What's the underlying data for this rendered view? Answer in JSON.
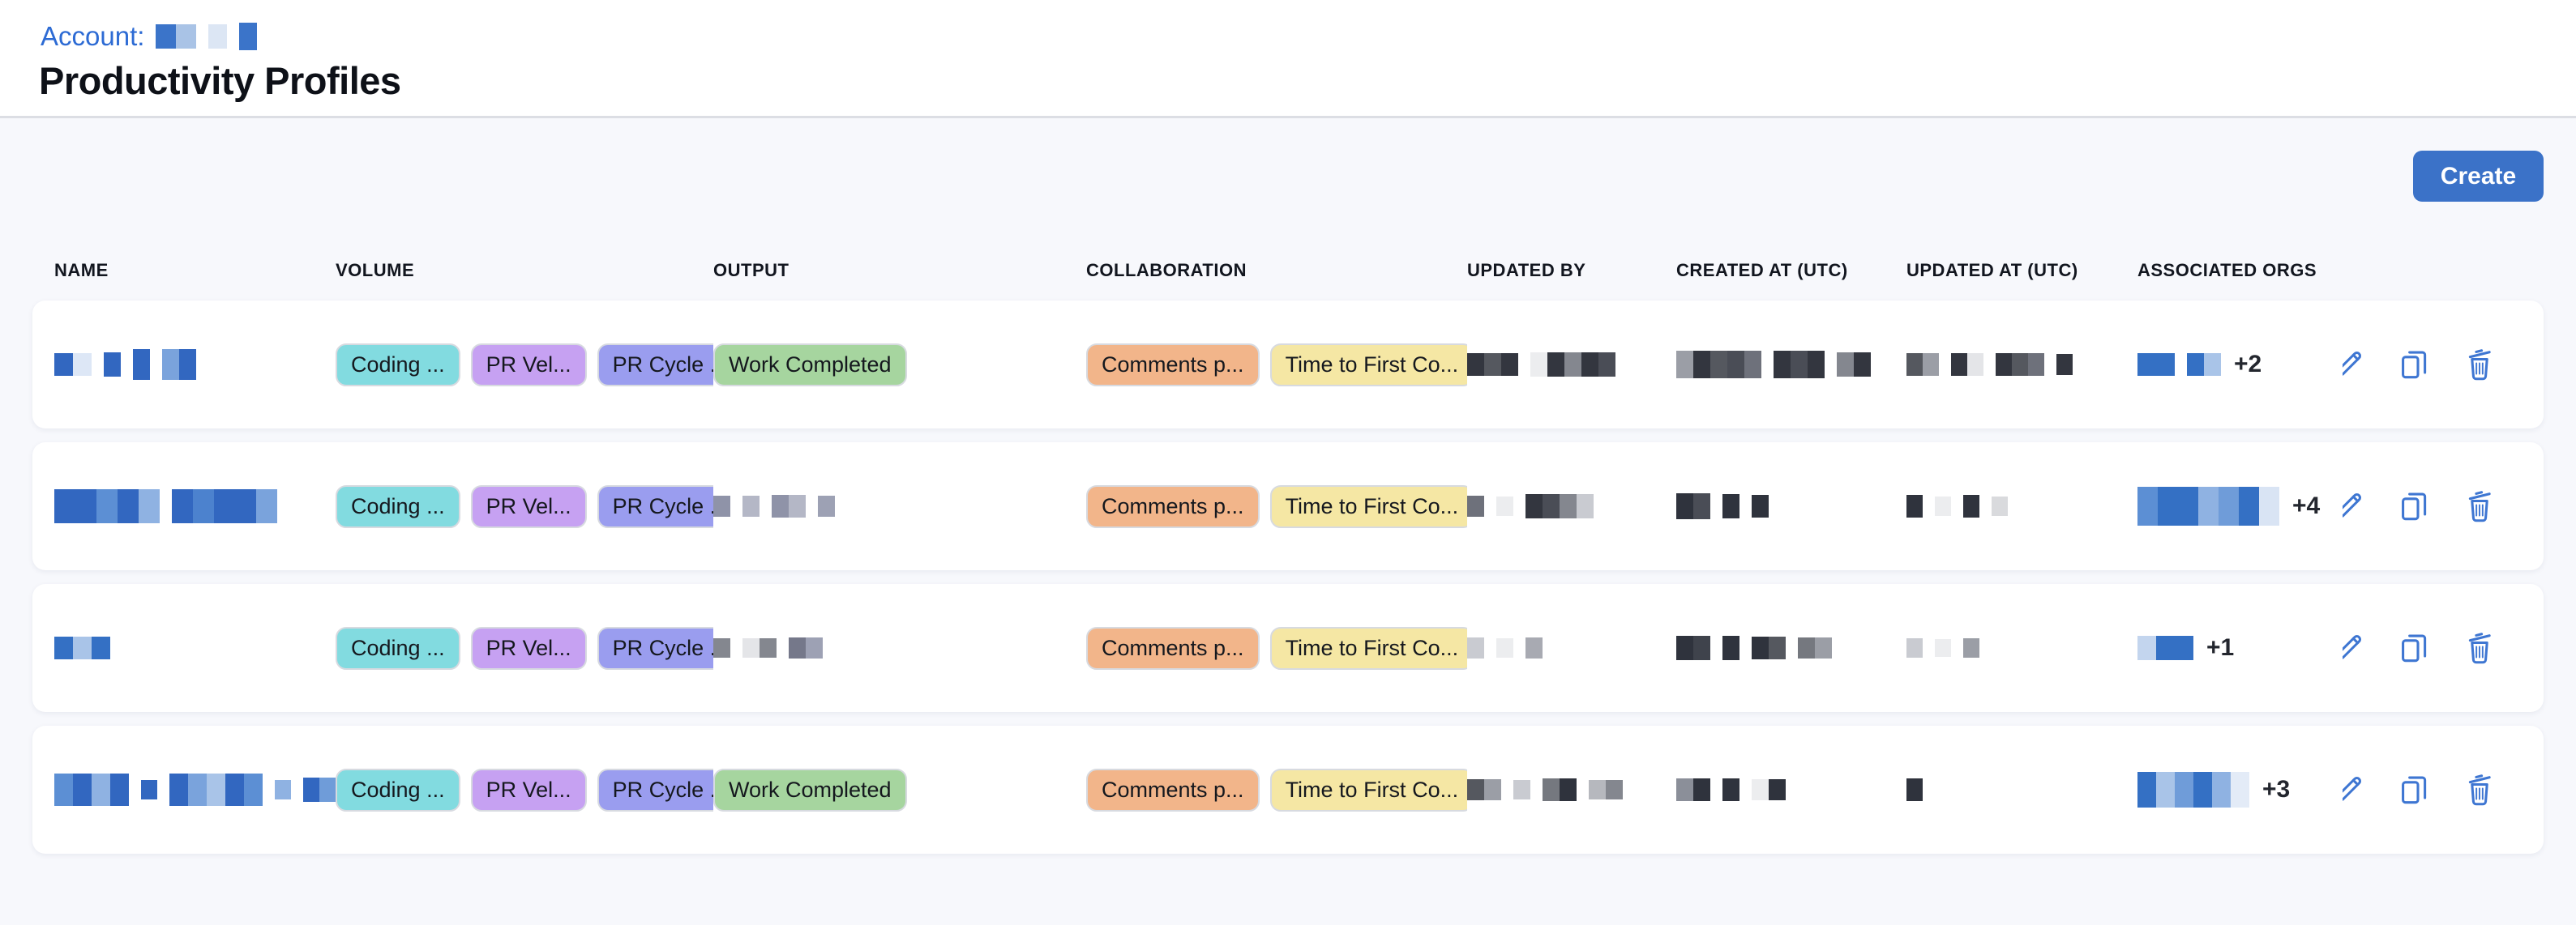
{
  "header": {
    "account_label": "Account:",
    "title": "Productivity Profiles",
    "account_redacted": [
      {
        "h": 30,
        "w": 25,
        "c": [
          "#3B74C9",
          "#A9C3E6"
        ]
      },
      {
        "h": 30,
        "w": 23,
        "c": [
          "#DCE6F4"
        ]
      },
      {
        "h": 34,
        "w": 22,
        "c": [
          "#3B74C9"
        ]
      }
    ]
  },
  "toolbar": {
    "create_label": "Create"
  },
  "colors": {
    "accent_blue": "#3B72C8",
    "link_blue": "#2D6BD4",
    "icon_blue": "#3E76D2",
    "page_background": "#F7F8FC",
    "card_background": "#FFFFFF",
    "badge_teal": "#82DBE0",
    "badge_purple": "#C6A1F2",
    "badge_periwinkle": "#9A9DEF",
    "badge_green": "#A6D59F",
    "badge_orange": "#F2B58A",
    "badge_yellow": "#F5E7A4"
  },
  "badge_defs": {
    "coding": {
      "label": "Coding ...",
      "bg": "#82DBE0"
    },
    "pr_velocity": {
      "label": "PR Vel...",
      "bg": "#C6A1F2"
    },
    "pr_cycle": {
      "label": "PR Cycle ...",
      "bg": "#9A9DEF"
    },
    "work_completed": {
      "label": "Work Completed",
      "bg": "#A6D59F"
    },
    "comments": {
      "label": "Comments p...",
      "bg": "#F2B58A"
    },
    "time_to_first": {
      "label": "Time to First Co...",
      "bg": "#F5E7A4"
    }
  },
  "table": {
    "columns": [
      "NAME",
      "VOLUME",
      "OUTPUT",
      "COLLABORATION",
      "UPDATED BY",
      "CREATED AT (UTC)",
      "UPDATED AT (UTC)",
      "ASSOCIATED ORGS"
    ],
    "rows": [
      {
        "name": [
          {
            "h": 28,
            "w": 23,
            "c": [
              "#3267C0",
              "#DDE7F6"
            ]
          },
          {
            "h": 30,
            "w": 21,
            "c": [
              "#3267C0"
            ]
          },
          {
            "h": 38,
            "w": 21,
            "c": [
              "#3267C0"
            ]
          },
          {
            "h": 38,
            "w": 21,
            "c": [
              "#7AA3DC",
              "#3267C0"
            ]
          }
        ],
        "volume": [
          "coding",
          "pr_velocity",
          "pr_cycle"
        ],
        "output_badges": [
          "work_completed"
        ],
        "output_redacted": [],
        "collaboration": [
          "comments",
          "time_to_first"
        ],
        "updated_by": [
          {
            "h": 28,
            "w": 21,
            "c": [
              "#33363F",
              "#55585F",
              "#33363F"
            ]
          },
          {
            "h": 30,
            "w": 21,
            "c": [
              "#ECEDEF",
              "#33363F",
              "#84878F",
              "#33363F",
              "#4A4D56"
            ]
          }
        ],
        "created_at": [
          {
            "h": 34,
            "w": 21,
            "c": [
              "#9B9EA6",
              "#33363F",
              "#55585F",
              "#4A4D56",
              "#6E717B"
            ]
          },
          {
            "h": 34,
            "w": 21,
            "c": [
              "#33363F",
              "#4A4D56",
              "#33363F"
            ]
          },
          {
            "h": 30,
            "w": 21,
            "c": [
              "#84878F",
              "#33363F"
            ]
          }
        ],
        "updated_at": [
          {
            "h": 28,
            "w": 20,
            "c": [
              "#55585F",
              "#9B9EA6"
            ]
          },
          {
            "h": 28,
            "w": 20,
            "c": [
              "#33363F",
              "#E4E5E8"
            ]
          },
          {
            "h": 28,
            "w": 20,
            "c": [
              "#33363F",
              "#55585F",
              "#6E717B"
            ]
          },
          {
            "h": 26,
            "w": 20,
            "c": [
              "#33363F"
            ]
          }
        ],
        "orgs": [
          {
            "h": 28,
            "w": 23,
            "c": [
              "#3470C4",
              "#3470C4"
            ]
          },
          {
            "h": 28,
            "w": 21,
            "c": [
              "#3470C4",
              "#A9C4E8"
            ]
          }
        ],
        "orgs_more": "+2"
      },
      {
        "name": [
          {
            "h": 42,
            "w": 26,
            "c": [
              "#3267C0",
              "#3267C0",
              "#5C8FD4",
              "#3267C0",
              "#8FB2E2"
            ]
          },
          {
            "h": 42,
            "w": 26,
            "c": [
              "#3267C0",
              "#4C82CE",
              "#3267C0",
              "#3267C0",
              "#7AA3DC"
            ]
          }
        ],
        "volume": [
          "coding",
          "pr_velocity",
          "pr_cycle"
        ],
        "output_badges": [],
        "output_redacted": [
          {
            "h": 26,
            "w": 21,
            "c": [
              "#8F93A8"
            ]
          },
          {
            "h": 26,
            "w": 21,
            "c": [
              "#B4B7C6"
            ]
          },
          {
            "h": 28,
            "w": 21,
            "c": [
              "#8F93A8",
              "#B4B7C6"
            ]
          },
          {
            "h": 26,
            "w": 21,
            "c": [
              "#9DA1B4"
            ]
          }
        ],
        "collaboration": [
          "comments",
          "time_to_first"
        ],
        "updated_by": [
          {
            "h": 26,
            "w": 21,
            "c": [
              "#6E717B"
            ]
          },
          {
            "h": 24,
            "w": 21,
            "c": [
              "#ECEDEF"
            ]
          },
          {
            "h": 30,
            "w": 21,
            "c": [
              "#33363F",
              "#4A4D56",
              "#84878F",
              "#C9CBD1"
            ]
          }
        ],
        "created_at": [
          {
            "h": 32,
            "w": 21,
            "c": [
              "#2F333D",
              "#4A4D56"
            ]
          },
          {
            "h": 30,
            "w": 21,
            "c": [
              "#2F333D"
            ]
          },
          {
            "h": 28,
            "w": 21,
            "c": [
              "#2F333D"
            ]
          }
        ],
        "updated_at": [
          {
            "h": 28,
            "w": 20,
            "c": [
              "#2F333D"
            ]
          },
          {
            "h": 24,
            "w": 20,
            "c": [
              "#ECEDEF"
            ]
          },
          {
            "h": 28,
            "w": 20,
            "c": [
              "#2F333D"
            ]
          },
          {
            "h": 24,
            "w": 20,
            "c": [
              "#D9DADD"
            ]
          }
        ],
        "orgs": [
          {
            "h": 48,
            "w": 25,
            "c": [
              "#5C8FD4",
              "#3470C4",
              "#3470C4",
              "#8FB2E2",
              "#6F9CD9",
              "#3470C4",
              "#D9E4F4"
            ]
          }
        ],
        "orgs_more": "+4"
      },
      {
        "name": [
          {
            "h": 28,
            "w": 23,
            "c": [
              "#3470C4",
              "#A9C4E8",
              "#3470C4"
            ]
          }
        ],
        "volume": [
          "coding",
          "pr_velocity",
          "pr_cycle"
        ],
        "output_badges": [],
        "output_redacted": [
          {
            "h": 24,
            "w": 21,
            "c": [
              "#84878F"
            ]
          },
          {
            "h": 24,
            "w": 21,
            "c": [
              "#E4E5E8",
              "#84878F"
            ]
          },
          {
            "h": 26,
            "w": 21,
            "c": [
              "#75788A",
              "#9DA1B4"
            ]
          }
        ],
        "collaboration": [
          "comments",
          "time_to_first"
        ],
        "updated_by": [
          {
            "h": 26,
            "w": 21,
            "c": [
              "#C9CBD1"
            ]
          },
          {
            "h": 24,
            "w": 21,
            "c": [
              "#ECEDEF"
            ]
          },
          {
            "h": 26,
            "w": 21,
            "c": [
              "#A8AAB2"
            ]
          }
        ],
        "created_at": [
          {
            "h": 30,
            "w": 21,
            "c": [
              "#2F333D",
              "#3F434C"
            ]
          },
          {
            "h": 30,
            "w": 21,
            "c": [
              "#2F333D"
            ]
          },
          {
            "h": 28,
            "w": 21,
            "c": [
              "#2F333D",
              "#55585F"
            ]
          },
          {
            "h": 26,
            "w": 21,
            "c": [
              "#75787F",
              "#9B9EA6"
            ]
          }
        ],
        "updated_at": [
          {
            "h": 24,
            "w": 20,
            "c": [
              "#C9CBD1"
            ]
          },
          {
            "h": 22,
            "w": 20,
            "c": [
              "#ECEDEF"
            ]
          },
          {
            "h": 24,
            "w": 20,
            "c": [
              "#9B9EA6"
            ]
          }
        ],
        "orgs": [
          {
            "h": 30,
            "w": 23,
            "c": [
              "#C3D5EE",
              "#3470C4",
              "#3470C4"
            ]
          }
        ],
        "orgs_more": "+1"
      },
      {
        "name": [
          {
            "h": 40,
            "w": 23,
            "c": [
              "#5C8FD4",
              "#3267C0",
              "#8FB2E2",
              "#3267C0"
            ]
          },
          {
            "h": 24,
            "w": 20,
            "c": [
              "#3267C0"
            ]
          },
          {
            "h": 40,
            "w": 23,
            "c": [
              "#3267C0",
              "#7AA3DC",
              "#A9C4E8",
              "#3267C0",
              "#5C8FD4"
            ]
          },
          {
            "h": 24,
            "w": 20,
            "c": [
              "#8FB2E2"
            ]
          },
          {
            "h": 30,
            "w": 20,
            "c": [
              "#3267C0",
              "#6F9CD9"
            ]
          }
        ],
        "volume": [
          "coding",
          "pr_velocity",
          "pr_cycle"
        ],
        "output_badges": [
          "work_completed"
        ],
        "output_redacted": [],
        "collaboration": [
          "comments",
          "time_to_first"
        ],
        "updated_by": [
          {
            "h": 26,
            "w": 21,
            "c": [
              "#55585F",
              "#9B9EA6"
            ]
          },
          {
            "h": 24,
            "w": 21,
            "c": [
              "#C9CBD1"
            ]
          },
          {
            "h": 28,
            "w": 21,
            "c": [
              "#75787F",
              "#2F333D"
            ]
          },
          {
            "h": 24,
            "w": 21,
            "c": [
              "#B6B8BE",
              "#84878F"
            ]
          }
        ],
        "created_at": [
          {
            "h": 28,
            "w": 21,
            "c": [
              "#8B8F99",
              "#2F333D"
            ]
          },
          {
            "h": 28,
            "w": 21,
            "c": [
              "#2F333D"
            ]
          },
          {
            "h": 26,
            "w": 21,
            "c": [
              "#ECEDEF",
              "#2F333D"
            ]
          }
        ],
        "updated_at": [
          {
            "h": 28,
            "w": 20,
            "c": [
              "#2F333D"
            ]
          }
        ],
        "orgs": [
          {
            "h": 44,
            "w": 23,
            "c": [
              "#3470C4",
              "#A9C4E8",
              "#6F9CD9",
              "#3470C4",
              "#8FB2E2",
              "#E3EBF7"
            ]
          }
        ],
        "orgs_more": "+3"
      }
    ]
  }
}
